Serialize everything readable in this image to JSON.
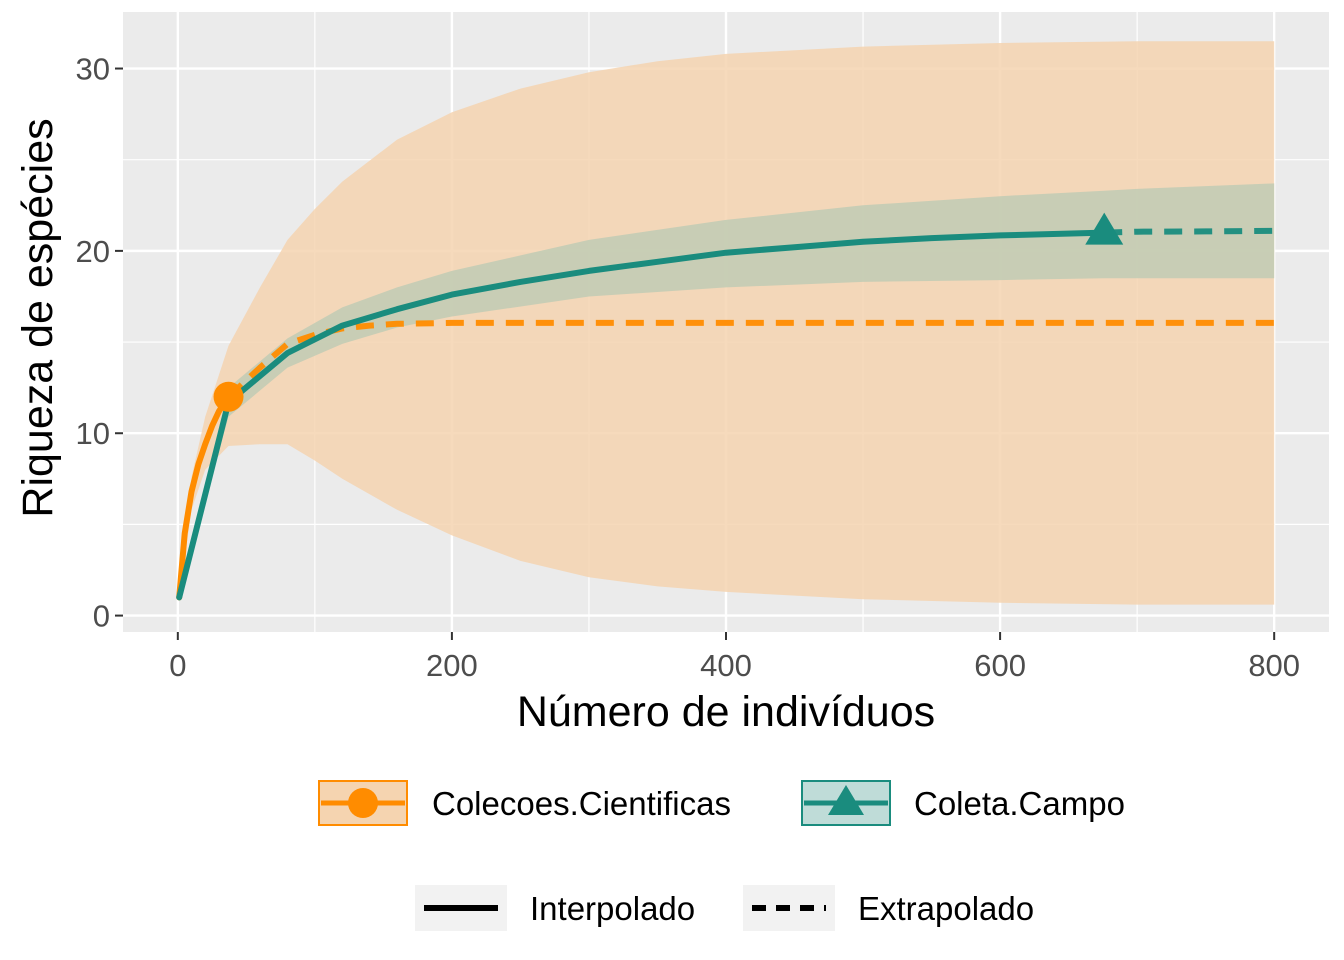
{
  "chart_data": {
    "type": "line",
    "title": "",
    "xlabel": "Número de indivíduos",
    "ylabel": "Riqueza de espécies",
    "xlim": [
      -40,
      840
    ],
    "ylim": [
      -0.9,
      33.1
    ],
    "x_ticks": [
      0,
      200,
      400,
      600,
      800
    ],
    "y_ticks": [
      0,
      10,
      20,
      30
    ],
    "x_tick_labels": [
      "0",
      "200",
      "400",
      "600",
      "800"
    ],
    "y_tick_labels": [
      "0",
      "10",
      "20",
      "30"
    ],
    "grid": true,
    "legend_position": "bottom",
    "series": [
      {
        "name": "Colecoes.Cientificas",
        "color": "#FF8C00",
        "fill": "#F5D4B0",
        "marker": "circle",
        "observed": {
          "x": 37,
          "y": 12
        },
        "interpolated": {
          "x": [
            1,
            5,
            10,
            15,
            20,
            25,
            30,
            37
          ],
          "y": [
            1,
            4.5,
            6.8,
            8.3,
            9.4,
            10.4,
            11.2,
            12
          ]
        },
        "extrapolated": {
          "x": [
            37,
            60,
            80,
            100,
            120,
            140,
            160,
            200,
            300,
            400,
            500,
            600,
            700,
            800
          ],
          "y": [
            12,
            13.6,
            14.9,
            15.4,
            15.75,
            15.9,
            16.0,
            16.05,
            16.05,
            16.05,
            16.05,
            16.05,
            16.05,
            16.05
          ]
        },
        "ci_x": [
          1,
          10,
          20,
          37,
          60,
          80,
          100,
          120,
          160,
          200,
          250,
          300,
          350,
          400,
          500,
          600,
          700,
          800
        ],
        "ci_lower": [
          1,
          5.8,
          8.0,
          9.3,
          9.4,
          9.4,
          8.5,
          7.5,
          5.8,
          4.4,
          3.0,
          2.1,
          1.6,
          1.3,
          0.9,
          0.7,
          0.6,
          0.6
        ],
        "ci_upper": [
          1,
          7.6,
          10.9,
          14.8,
          18.0,
          20.6,
          22.3,
          23.8,
          26.1,
          27.6,
          28.9,
          29.8,
          30.4,
          30.8,
          31.2,
          31.4,
          31.5,
          31.5
        ]
      },
      {
        "name": "Coleta.Campo",
        "color": "#1A8C7E",
        "fill": "#BFCBB4",
        "marker": "triangle",
        "observed": {
          "x": 676,
          "y": 21
        },
        "interpolated": {
          "x": [
            1,
            37,
            80,
            120,
            160,
            200,
            250,
            300,
            350,
            400,
            450,
            500,
            550,
            600,
            676
          ],
          "y": [
            1,
            11.7,
            14.4,
            15.9,
            16.8,
            17.6,
            18.3,
            18.9,
            19.4,
            19.9,
            20.2,
            20.5,
            20.7,
            20.85,
            21.0
          ]
        },
        "extrapolated": {
          "x": [
            676,
            700,
            750,
            800
          ],
          "y": [
            21.0,
            21.05,
            21.07,
            21.1
          ]
        },
        "ci_x": [
          1,
          37,
          80,
          120,
          160,
          200,
          300,
          400,
          500,
          600,
          676,
          700,
          800
        ],
        "ci_lower": [
          1,
          10.9,
          13.6,
          14.9,
          15.8,
          16.4,
          17.5,
          18.0,
          18.3,
          18.4,
          18.5,
          18.5,
          18.5
        ],
        "ci_upper": [
          1,
          12.5,
          15.2,
          16.9,
          18.0,
          18.9,
          20.6,
          21.7,
          22.5,
          23.0,
          23.3,
          23.4,
          23.7
        ]
      }
    ],
    "line_types": [
      {
        "name": "Interpolado",
        "dash": "solid"
      },
      {
        "name": "Extrapolado",
        "dash": "dashed"
      }
    ]
  }
}
